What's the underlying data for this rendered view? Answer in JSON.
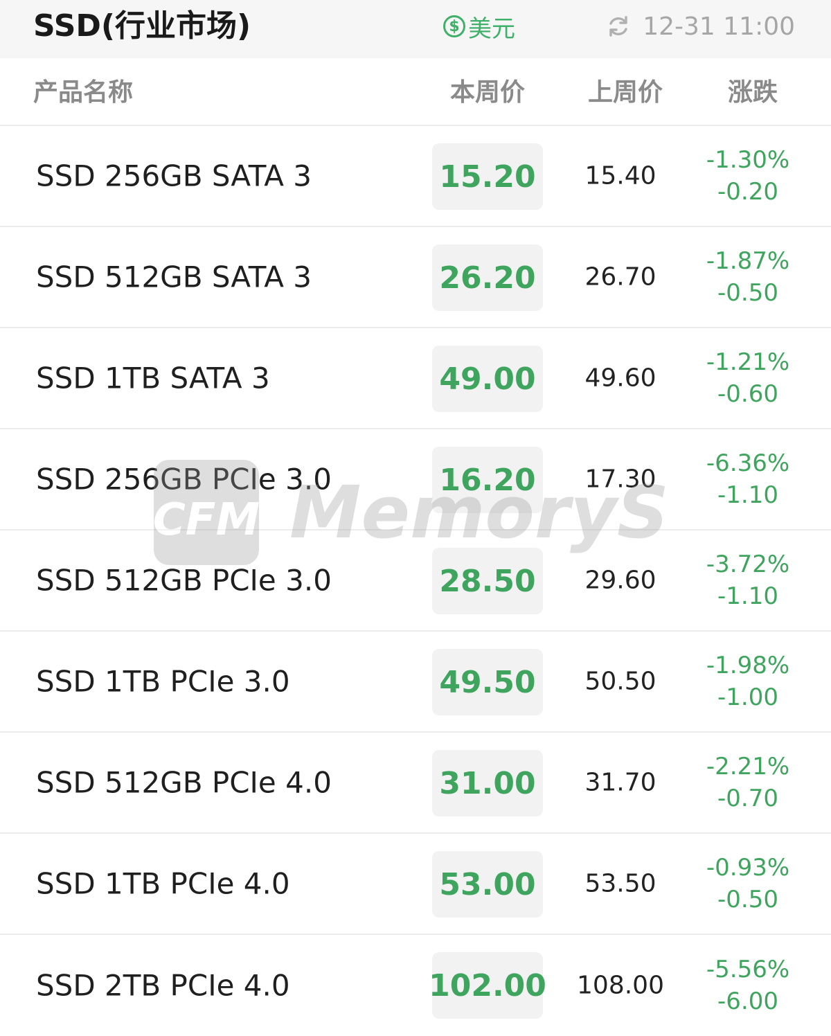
{
  "header": {
    "title": "SSD(行业市场)",
    "currency_label": "美元",
    "currency_icon": "dollar-circle-icon",
    "timestamp": "12-31 11:00",
    "refresh_icon": "refresh-icon"
  },
  "columns": {
    "name": "产品名称",
    "this_week": "本周价",
    "last_week": "上周价",
    "change": "涨跌"
  },
  "rows": [
    {
      "name": "SSD 256GB SATA 3",
      "this_week": "15.20",
      "last_week": "15.40",
      "change_pct": "-1.30%",
      "change_abs": "-0.20"
    },
    {
      "name": "SSD 512GB SATA 3",
      "this_week": "26.20",
      "last_week": "26.70",
      "change_pct": "-1.87%",
      "change_abs": "-0.50"
    },
    {
      "name": "SSD 1TB SATA 3",
      "this_week": "49.00",
      "last_week": "49.60",
      "change_pct": "-1.21%",
      "change_abs": "-0.60"
    },
    {
      "name": "SSD 256GB PCIe 3.0",
      "this_week": "16.20",
      "last_week": "17.30",
      "change_pct": "-6.36%",
      "change_abs": "-1.10"
    },
    {
      "name": "SSD 512GB PCIe 3.0",
      "this_week": "28.50",
      "last_week": "29.60",
      "change_pct": "-3.72%",
      "change_abs": "-1.10"
    },
    {
      "name": "SSD 1TB PCIe 3.0",
      "this_week": "49.50",
      "last_week": "50.50",
      "change_pct": "-1.98%",
      "change_abs": "-1.00"
    },
    {
      "name": "SSD 512GB PCIe 4.0",
      "this_week": "31.00",
      "last_week": "31.70",
      "change_pct": "-2.21%",
      "change_abs": "-0.70"
    },
    {
      "name": "SSD 1TB PCIe 4.0",
      "this_week": "53.00",
      "last_week": "53.50",
      "change_pct": "-0.93%",
      "change_abs": "-0.50"
    },
    {
      "name": "SSD 2TB PCIe 4.0",
      "this_week": "102.00",
      "last_week": "108.00",
      "change_pct": "-5.56%",
      "change_abs": "-6.00"
    }
  ],
  "watermark": {
    "logo_text": "CFM",
    "brand_text": "MemoryS"
  },
  "colors": {
    "accent_green": "#3fa55e",
    "header_bg": "#f6f6f6",
    "price_box_bg": "#f2f2f2",
    "muted_text": "#a6a6a6"
  }
}
